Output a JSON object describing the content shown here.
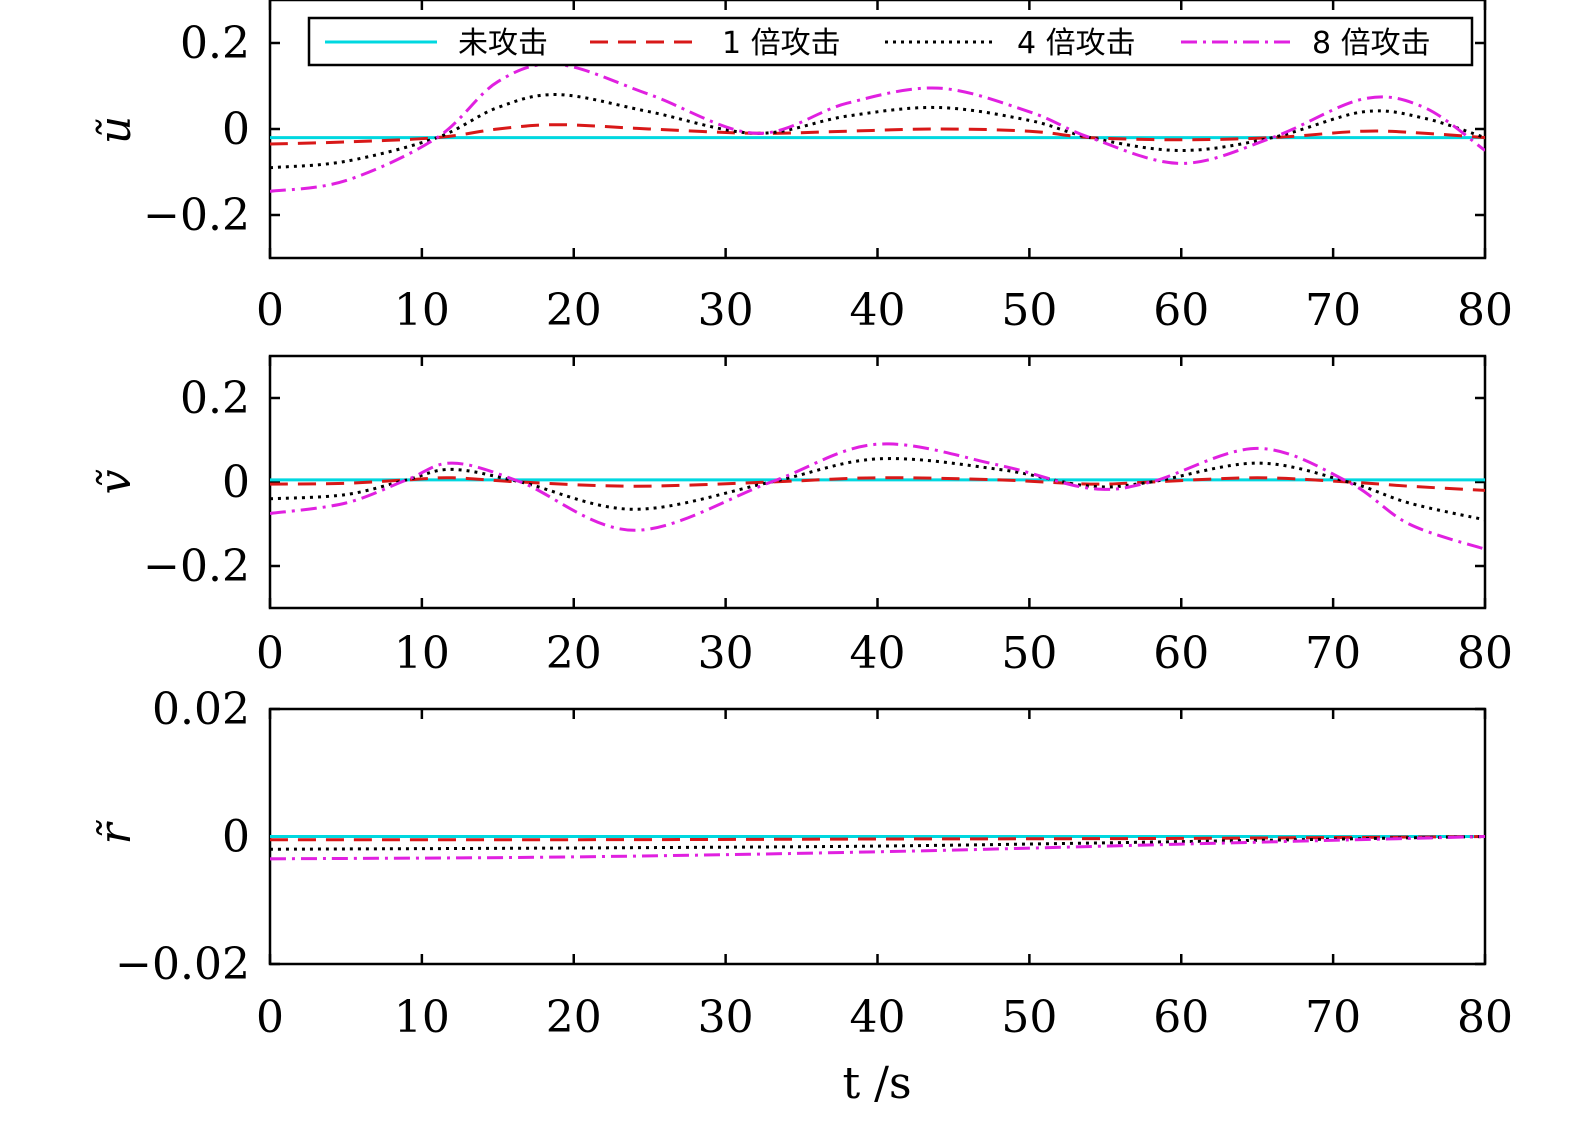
{
  "chart_data": [
    {
      "type": "line",
      "ylabel": "ũ",
      "xlabel": "",
      "xlim": [
        0,
        80
      ],
      "ylim": [
        -0.3,
        0.3
      ],
      "xticks": [
        "0",
        "10",
        "20",
        "30",
        "40",
        "50",
        "60",
        "70",
        "80"
      ],
      "yticks": [
        {
          "value": 0.2,
          "label": "0.2"
        },
        {
          "value": 0,
          "label": "0"
        },
        {
          "value": -0.2,
          "label": "−0.2"
        }
      ],
      "legend": {
        "position": "top",
        "entries": [
          "未攻击",
          "1 倍攻击",
          "4 倍攻击",
          "8 倍攻击"
        ]
      },
      "series": [
        {
          "name": "未攻击",
          "color": "#00d8e0",
          "dash": "solid",
          "x": [
            0,
            80
          ],
          "y": [
            -0.02,
            -0.02
          ]
        },
        {
          "name": "1 倍攻击",
          "color": "#d81818",
          "dash": "dashed",
          "x": [
            0,
            5,
            11,
            15,
            19,
            25,
            32,
            38,
            44,
            50,
            54,
            60,
            66,
            72,
            76,
            80
          ],
          "y": [
            -0.035,
            -0.03,
            -0.02,
            0.0,
            0.01,
            0.0,
            -0.01,
            -0.005,
            0.0,
            -0.005,
            -0.02,
            -0.025,
            -0.02,
            -0.005,
            -0.01,
            -0.02
          ]
        },
        {
          "name": "4 倍攻击",
          "color": "#000000",
          "dash": "dotted",
          "x": [
            0,
            5,
            11,
            15,
            19,
            25,
            32,
            38,
            44,
            50,
            54,
            60,
            66,
            72,
            76,
            80
          ],
          "y": [
            -0.09,
            -0.075,
            -0.02,
            0.05,
            0.08,
            0.04,
            -0.01,
            0.03,
            0.05,
            0.02,
            -0.02,
            -0.05,
            -0.02,
            0.04,
            0.025,
            -0.02
          ]
        },
        {
          "name": "8 倍攻击",
          "color": "#e020e0",
          "dash": "dashdot",
          "x": [
            0,
            5,
            11,
            15,
            19,
            25,
            32,
            38,
            44,
            50,
            54,
            60,
            66,
            72,
            76,
            80
          ],
          "y": [
            -0.145,
            -0.12,
            -0.02,
            0.11,
            0.15,
            0.08,
            -0.01,
            0.06,
            0.095,
            0.04,
            -0.02,
            -0.08,
            -0.02,
            0.07,
            0.05,
            -0.05
          ]
        }
      ]
    },
    {
      "type": "line",
      "ylabel": "ṽ",
      "xlabel": "",
      "xlim": [
        0,
        80
      ],
      "ylim": [
        -0.3,
        0.3
      ],
      "xticks": [
        "0",
        "10",
        "20",
        "30",
        "40",
        "50",
        "60",
        "70",
        "80"
      ],
      "yticks": [
        {
          "value": 0.2,
          "label": "0.2"
        },
        {
          "value": 0,
          "label": "0"
        },
        {
          "value": -0.2,
          "label": "−0.2"
        }
      ],
      "series": [
        {
          "name": "未攻击",
          "color": "#00d8e0",
          "dash": "solid",
          "x": [
            0,
            80
          ],
          "y": [
            0.005,
            0.005
          ]
        },
        {
          "name": "1 倍攻击",
          "color": "#d81818",
          "dash": "dashed",
          "x": [
            0,
            5,
            9,
            12,
            16.5,
            24,
            33,
            40,
            48,
            54,
            58,
            65,
            71,
            75,
            80
          ],
          "y": [
            -0.005,
            -0.003,
            0.005,
            0.01,
            0.0,
            -0.01,
            0.0,
            0.01,
            0.005,
            -0.005,
            0.0,
            0.01,
            0.0,
            -0.01,
            -0.02
          ]
        },
        {
          "name": "4 倍攻击",
          "color": "#000000",
          "dash": "dotted",
          "x": [
            0,
            5,
            9,
            12,
            16.5,
            24,
            33,
            40,
            48,
            54,
            58,
            65,
            71,
            75,
            80
          ],
          "y": [
            -0.04,
            -0.03,
            0.005,
            0.03,
            0.0,
            -0.065,
            0.0,
            0.055,
            0.03,
            -0.01,
            0.0,
            0.045,
            0.0,
            -0.05,
            -0.09
          ]
        },
        {
          "name": "8 倍攻击",
          "color": "#e020e0",
          "dash": "dashdot",
          "x": [
            0,
            5,
            9,
            12,
            16.5,
            24,
            33,
            40,
            48,
            54,
            58,
            65,
            71,
            75,
            80
          ],
          "y": [
            -0.075,
            -0.05,
            0.005,
            0.045,
            0.0,
            -0.115,
            0.0,
            0.09,
            0.04,
            -0.015,
            0.0,
            0.08,
            0.0,
            -0.1,
            -0.16
          ]
        }
      ]
    },
    {
      "type": "line",
      "ylabel": "r̃",
      "xlabel": "t /s",
      "xlim": [
        0,
        80
      ],
      "ylim": [
        -0.02,
        0.02
      ],
      "xticks": [
        "0",
        "10",
        "20",
        "30",
        "40",
        "50",
        "60",
        "70",
        "80"
      ],
      "yticks": [
        {
          "value": 0.02,
          "label": "0.02"
        },
        {
          "value": 0,
          "label": "0"
        },
        {
          "value": -0.02,
          "label": "−0.02"
        }
      ],
      "series": [
        {
          "name": "未攻击",
          "color": "#00d8e0",
          "dash": "solid",
          "x": [
            0,
            80
          ],
          "y": [
            0.0,
            0.0
          ]
        },
        {
          "name": "1 倍攻击",
          "color": "#d81818",
          "dash": "dashed",
          "x": [
            0,
            20,
            40,
            60,
            80
          ],
          "y": [
            -0.0005,
            -0.0005,
            -0.0004,
            -0.0003,
            0.0
          ]
        },
        {
          "name": "4 倍攻击",
          "color": "#000000",
          "dash": "dotted",
          "x": [
            0,
            20,
            40,
            60,
            80
          ],
          "y": [
            -0.002,
            -0.0018,
            -0.0015,
            -0.0008,
            0.0
          ]
        },
        {
          "name": "8 倍攻击",
          "color": "#e020e0",
          "dash": "dashdot",
          "x": [
            0,
            20,
            40,
            60,
            80
          ],
          "y": [
            -0.0035,
            -0.0032,
            -0.0024,
            -0.0012,
            0.0
          ]
        }
      ]
    }
  ]
}
